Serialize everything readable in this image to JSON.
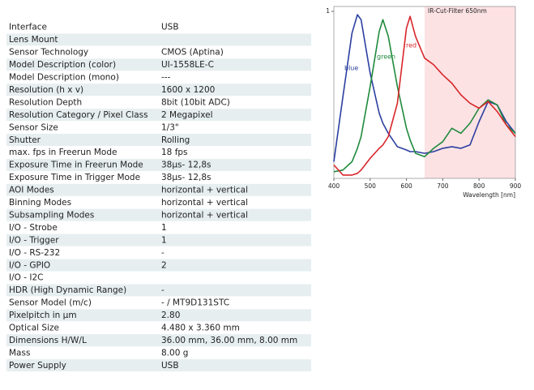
{
  "table": {
    "rows": [
      [
        "Interface",
        "USB"
      ],
      [
        "Lens Mount",
        null
      ],
      [
        "Sensor Technology",
        "CMOS (Aptina)"
      ],
      [
        "Model Description (color)",
        "UI-1558LE-C"
      ],
      [
        "Model Description (mono)",
        "---"
      ],
      [
        "Resolution (h x v)",
        "1600 x 1200"
      ],
      [
        "Resolution Depth",
        "8bit (10bit ADC)"
      ],
      [
        "Resolution Category / Pixel Class",
        "2 Megapixel"
      ],
      [
        "Sensor Size",
        "1/3\""
      ],
      [
        "Shutter",
        "Rolling"
      ],
      [
        "max. fps in Freerun Mode",
        "18 fps"
      ],
      [
        "Exposure Time in Freerun Mode",
        "38µs- 12,8s"
      ],
      [
        "Exposure Time in Trigger Mode",
        "38µs- 12,8s"
      ],
      [
        "AOI Modes",
        "horizontal + vertical"
      ],
      [
        "Binning Modes",
        "horizontal + vertical"
      ],
      [
        "Subsampling Modes",
        "horizontal + vertical"
      ],
      [
        "I/O - Strobe",
        "1"
      ],
      [
        "I/O - Trigger",
        "1"
      ],
      [
        "I/O - RS-232",
        "-"
      ],
      [
        "I/O - GPIO",
        "2"
      ],
      [
        "I/O - I2C",
        null
      ],
      [
        "HDR (High Dynamic Range)",
        "-"
      ],
      [
        "Sensor Model (m/c)",
        "- / MT9D131STC"
      ],
      [
        "Pixelpitch in µm",
        "2.80"
      ],
      [
        "Optical Size",
        "4.480 x 3.360 mm"
      ],
      [
        "Dimensions H/W/L",
        "36.00 mm, 36.00 mm, 8.00 mm"
      ],
      [
        "Mass",
        "8.00 g"
      ],
      [
        "Power Supply",
        "USB"
      ]
    ]
  },
  "chart_data": {
    "type": "line",
    "x_label": "Wavelength [nm]",
    "annotation": "IR-Cut-Filter 650nm",
    "ir_cut": 650,
    "ir_cut_color": "#fde2e4",
    "x": [
      400,
      425,
      450,
      465,
      475,
      500,
      525,
      535,
      550,
      575,
      600,
      610,
      625,
      650,
      675,
      700,
      725,
      750,
      775,
      800,
      825,
      850,
      875,
      900
    ],
    "series": [
      {
        "name": "blue",
        "color": "#2b3fa0",
        "values": [
          0.1,
          0.49,
          0.87,
          0.98,
          0.95,
          0.63,
          0.39,
          0.33,
          0.27,
          0.19,
          0.17,
          0.16,
          0.16,
          0.15,
          0.16,
          0.18,
          0.19,
          0.18,
          0.2,
          0.34,
          0.46,
          0.44,
          0.34,
          0.27
        ]
      },
      {
        "name": "green",
        "color": "#1f8a3c",
        "values": [
          0.04,
          0.05,
          0.1,
          0.18,
          0.25,
          0.55,
          0.88,
          0.95,
          0.85,
          0.55,
          0.3,
          0.23,
          0.15,
          0.13,
          0.18,
          0.22,
          0.3,
          0.27,
          0.33,
          0.42,
          0.47,
          0.44,
          0.32,
          0.27
        ]
      },
      {
        "name": "red",
        "color": "#d8262a",
        "values": [
          0.08,
          0.02,
          0.02,
          0.03,
          0.05,
          0.12,
          0.18,
          0.2,
          0.25,
          0.45,
          0.9,
          0.97,
          0.85,
          0.72,
          0.68,
          0.62,
          0.57,
          0.5,
          0.45,
          0.42,
          0.46,
          0.4,
          0.32,
          0.25
        ]
      }
    ],
    "xlim": [
      400,
      900
    ],
    "xticks": [
      400,
      500,
      600,
      700,
      800,
      900
    ],
    "ylim": [
      0,
      1
    ],
    "yticks": [
      1
    ]
  }
}
